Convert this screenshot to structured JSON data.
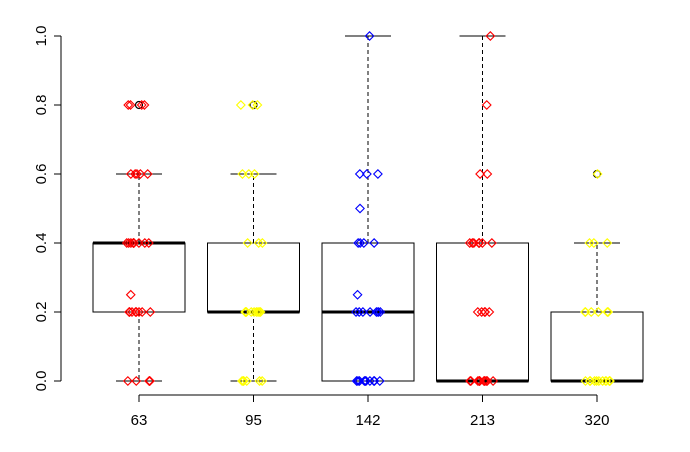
{
  "chart_data": {
    "type": "boxplot",
    "title": "",
    "xlabel": "",
    "ylabel": "",
    "categories": [
      "63",
      "95",
      "142",
      "213",
      "320"
    ],
    "ylim": [
      0,
      1
    ],
    "yticks": [
      "0.0",
      "0.2",
      "0.4",
      "0.6",
      "0.8",
      "1.0"
    ],
    "ytick_values": [
      0,
      0.2,
      0.4,
      0.6,
      0.8,
      1.0
    ],
    "boxes": [
      {
        "category": "63",
        "whisker_low": 0,
        "q1": 0.2,
        "median": 0.4,
        "q3": 0.4,
        "whisker_high": 0.6,
        "outliers": [
          0.8
        ],
        "color": "#ff0000"
      },
      {
        "category": "95",
        "whisker_low": 0,
        "q1": 0.2,
        "median": 0.2,
        "q3": 0.4,
        "whisker_high": 0.6,
        "outliers": [
          0.8
        ],
        "color": "#ffff00"
      },
      {
        "category": "142",
        "whisker_low": 0,
        "q1": 0.0,
        "median": 0.2,
        "q3": 0.4,
        "whisker_high": 1.0,
        "outliers": [],
        "color": "#0000ff"
      },
      {
        "category": "213",
        "whisker_low": 0,
        "q1": 0.0,
        "median": 0.0,
        "q3": 0.4,
        "whisker_high": 1.0,
        "outliers": [],
        "color": "#ff0000"
      },
      {
        "category": "320",
        "whisker_low": 0,
        "q1": 0.0,
        "median": 0.0,
        "q3": 0.2,
        "whisker_high": 0.4,
        "outliers": [
          0.6
        ],
        "color": "#ffff00"
      }
    ],
    "points": [
      {
        "category": "63",
        "values": [
          0,
          0,
          0,
          0,
          0,
          0.2,
          0.2,
          0.2,
          0.2,
          0.2,
          0.2,
          0.2,
          0.2,
          0.25,
          0.4,
          0.4,
          0.4,
          0.4,
          0.4,
          0.4,
          0.4,
          0.4,
          0.4,
          0.6,
          0.6,
          0.6,
          0.6,
          0.6,
          0.8,
          0.8,
          0.8,
          0.8
        ]
      },
      {
        "category": "95",
        "values": [
          0,
          0,
          0,
          0,
          0,
          0,
          0.2,
          0.2,
          0.2,
          0.2,
          0.2,
          0.2,
          0.2,
          0.2,
          0.2,
          0.2,
          0.4,
          0.4,
          0.4,
          0.6,
          0.6,
          0.6,
          0.8,
          0.8,
          0.8
        ]
      },
      {
        "category": "142",
        "values": [
          0,
          0,
          0,
          0,
          0,
          0,
          0,
          0,
          0,
          0,
          0.2,
          0.2,
          0.2,
          0.2,
          0.2,
          0.2,
          0.2,
          0.2,
          0.25,
          0.4,
          0.4,
          0.4,
          0.4,
          0.5,
          0.6,
          0.6,
          0.6,
          1.0
        ]
      },
      {
        "category": "213",
        "values": [
          0,
          0,
          0,
          0,
          0,
          0,
          0,
          0,
          0,
          0,
          0,
          0,
          0.2,
          0.2,
          0.2,
          0.2,
          0.2,
          0.4,
          0.4,
          0.4,
          0.4,
          0.4,
          0.4,
          0.4,
          0.4,
          0.6,
          0.6,
          0.8,
          1.0
        ]
      },
      {
        "category": "320",
        "values": [
          0,
          0,
          0,
          0,
          0,
          0,
          0,
          0,
          0,
          0,
          0,
          0,
          0.2,
          0.2,
          0.2,
          0.2,
          0.2,
          0.2,
          0.4,
          0.4,
          0.4,
          0.6
        ]
      }
    ],
    "grid": false,
    "legend": "none"
  }
}
